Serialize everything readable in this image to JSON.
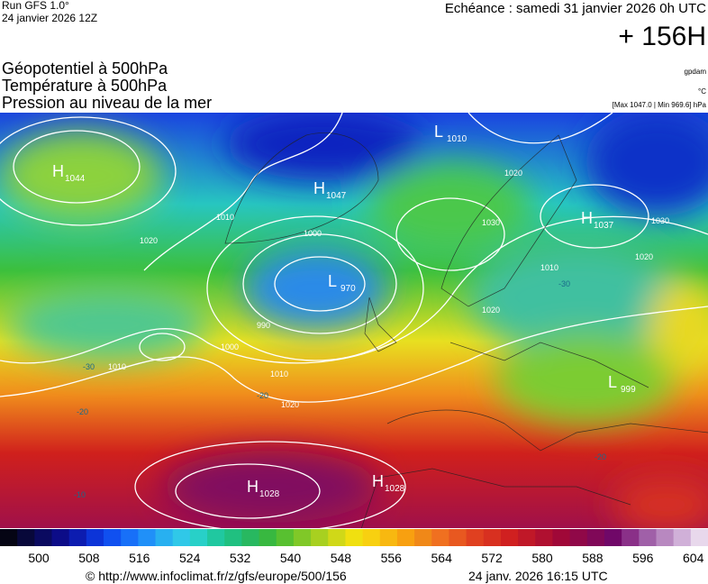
{
  "header": {
    "run": "Run GFS 1.0°",
    "run_date": "24 janvier 2026 12Z",
    "valid": "Echéance : samedi 31 janvier 2026 0h UTC",
    "lead": "+ 156H"
  },
  "legend_titles": [
    "Géopotentiel à 500hPa",
    "Température à 500hPa",
    "Pression au niveau de la mer"
  ],
  "units": {
    "geopotential": "gpdam",
    "temperature": "°C",
    "pressure": "[Max 1047.0 | Min 969.6] hPa"
  },
  "pressure_centers": [
    {
      "type": "H",
      "value": "1044"
    },
    {
      "type": "H",
      "value": "1047"
    },
    {
      "type": "L",
      "value": "1010"
    },
    {
      "type": "H",
      "value": "1037"
    },
    {
      "type": "L",
      "value": "970"
    },
    {
      "type": "L",
      "value": "999"
    },
    {
      "type": "H",
      "value": "1028"
    },
    {
      "type": "H",
      "value": "1028"
    }
  ],
  "isobar_labels": [
    "1010",
    "1000",
    "990",
    "1000",
    "1010",
    "1020",
    "1020",
    "1030",
    "1020",
    "1010",
    "1020",
    "1030",
    "1020",
    "1010"
  ],
  "temperature_labels": [
    "-30",
    "-20",
    "-20",
    "-20",
    "-10",
    "-30"
  ],
  "colorbar_labels": [
    500,
    508,
    516,
    524,
    532,
    540,
    548,
    556,
    564,
    572,
    580,
    588,
    596,
    604
  ],
  "footer": {
    "source": "© http://www.infoclimat.fr/z/gfs/europe/500/156",
    "generated": "24 janv. 2026 16:15 UTC"
  }
}
